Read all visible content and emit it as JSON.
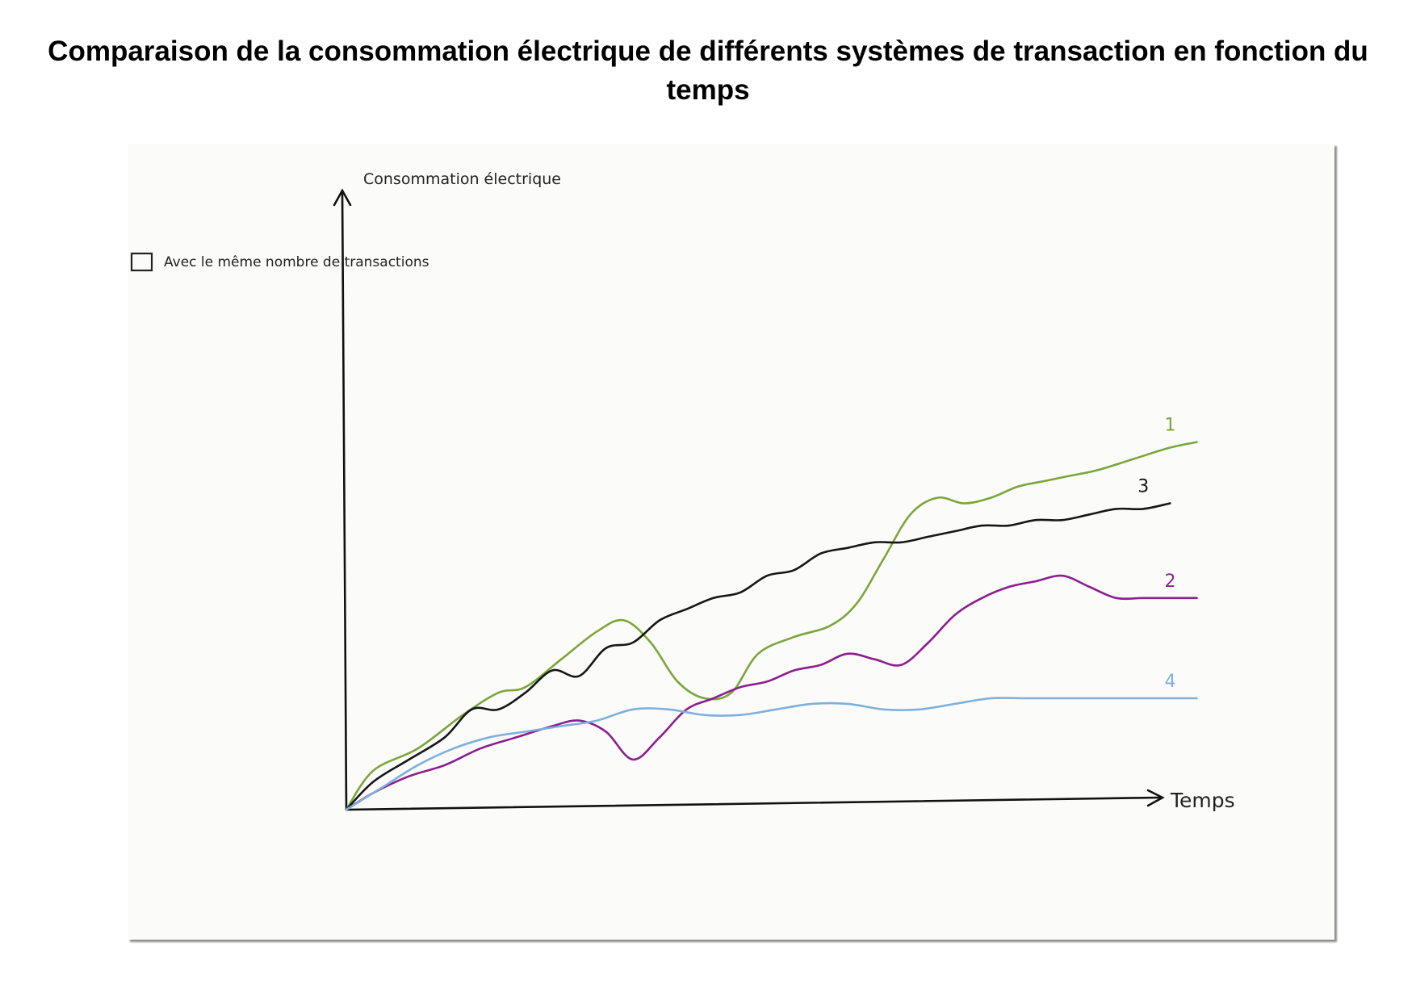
{
  "title": "Comparaison de la consommation électrique de différents systèmes de transaction en fonction du temps",
  "chart_data": {
    "type": "line",
    "ylabel": "Consommation électrique",
    "xlabel": "Temps",
    "note": "Avec le même nombre de transactions",
    "grid": false,
    "xlim": [
      0,
      100
    ],
    "ylim": [
      0,
      100
    ],
    "series": [
      {
        "name": "1",
        "color": "#7ba63a",
        "x": [
          0,
          3,
          8,
          13,
          17,
          20,
          24,
          28,
          31,
          34,
          37,
          40,
          43,
          46,
          50,
          54,
          57,
          60,
          63,
          66,
          69,
          72,
          75,
          78,
          81,
          84,
          88,
          92,
          95
        ],
        "y": [
          0,
          7,
          11,
          17,
          21,
          22,
          27,
          32,
          34,
          30,
          23,
          20,
          21,
          28,
          31,
          33,
          37,
          45,
          53,
          56,
          55,
          56,
          58,
          59,
          60,
          61,
          63,
          65,
          66
        ]
      },
      {
        "name": "2",
        "color": "#8c1e8e",
        "x": [
          0,
          3,
          7,
          11,
          15,
          19,
          23,
          26,
          29,
          32,
          35,
          38,
          41,
          44,
          47,
          50,
          53,
          56,
          59,
          62,
          65,
          68,
          71,
          74,
          77,
          80,
          83,
          86,
          89,
          92,
          95
        ],
        "y": [
          0,
          3,
          6,
          8,
          11,
          13,
          15,
          16,
          14,
          9,
          13,
          18,
          20,
          22,
          23,
          25,
          26,
          28,
          27,
          26,
          30,
          35,
          38,
          40,
          41,
          42,
          40,
          38,
          38,
          38,
          38
        ]
      },
      {
        "name": "3",
        "color": "#161616",
        "x": [
          0,
          3,
          7,
          11,
          14,
          17,
          20,
          23,
          26,
          29,
          32,
          35,
          38,
          41,
          44,
          47,
          50,
          53,
          56,
          59,
          62,
          65,
          68,
          71,
          74,
          77,
          80,
          83,
          86,
          89,
          92
        ],
        "y": [
          0,
          5,
          9,
          13,
          18,
          18,
          21,
          25,
          24,
          29,
          30,
          34,
          36,
          38,
          39,
          42,
          43,
          46,
          47,
          48,
          48,
          49,
          50,
          51,
          51,
          52,
          52,
          53,
          54,
          54,
          55
        ]
      },
      {
        "name": "4",
        "color": "#7fb0dc",
        "x": [
          0,
          4,
          8,
          12,
          16,
          20,
          24,
          28,
          32,
          36,
          40,
          44,
          48,
          52,
          56,
          60,
          64,
          68,
          72,
          76,
          80,
          84,
          88,
          92,
          95
        ],
        "y": [
          0,
          4,
          8,
          11,
          13,
          14,
          15,
          16,
          18,
          18,
          17,
          17,
          18,
          19,
          19,
          18,
          18,
          19,
          20,
          20,
          20,
          20,
          20,
          20,
          20
        ]
      }
    ]
  }
}
